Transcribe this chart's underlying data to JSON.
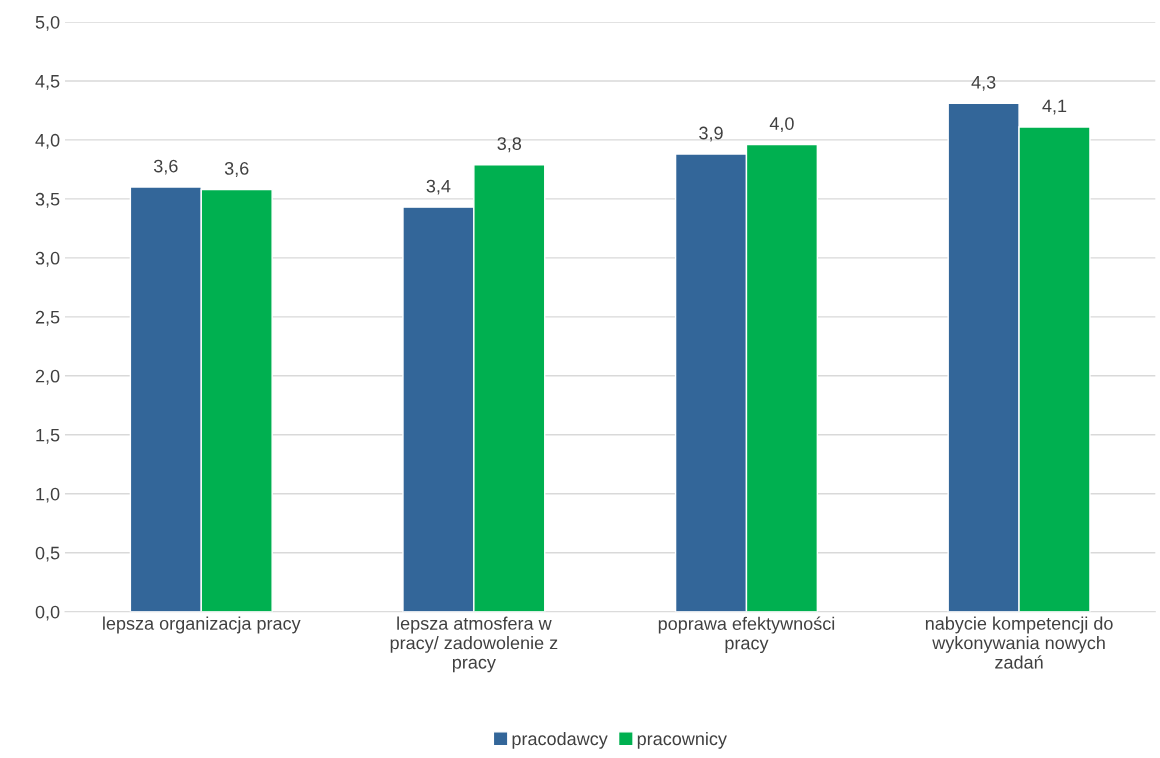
{
  "chart_data": {
    "type": "bar",
    "categories": [
      "lepsza organizacja pracy",
      "lepsza atmosfera w\npracy/ zadowolenie z\npracy",
      "poprawa efektywności\npracy",
      "nabycie kompetencji do\nwykonywania nowych\nzadań"
    ],
    "series": [
      {
        "name": "pracodawcy",
        "color": "#336699",
        "values": [
          3.6,
          3.43,
          3.88,
          4.31
        ],
        "value_labels": [
          "3,6",
          "3,4",
          "3,9",
          "4,3"
        ]
      },
      {
        "name": "pracownicy",
        "color": "#00b050",
        "values": [
          3.58,
          3.79,
          3.96,
          4.11
        ],
        "value_labels": [
          "3,6",
          "3,8",
          "4,0",
          "4,1"
        ]
      }
    ],
    "ylim": [
      0,
      5
    ],
    "yticks": [
      {
        "value": 0,
        "label": "0,0"
      },
      {
        "value": 0.5,
        "label": "0,5"
      },
      {
        "value": 1,
        "label": "1,0"
      },
      {
        "value": 1.5,
        "label": "1,5"
      },
      {
        "value": 2,
        "label": "2,0"
      },
      {
        "value": 2.5,
        "label": "2,5"
      },
      {
        "value": 3,
        "label": "3,0"
      },
      {
        "value": 3.5,
        "label": "3,5"
      },
      {
        "value": 4,
        "label": "4,0"
      },
      {
        "value": 4.5,
        "label": "4,5"
      },
      {
        "value": 5,
        "label": "5,0"
      }
    ],
    "grid": "y",
    "legend": "bottom"
  }
}
